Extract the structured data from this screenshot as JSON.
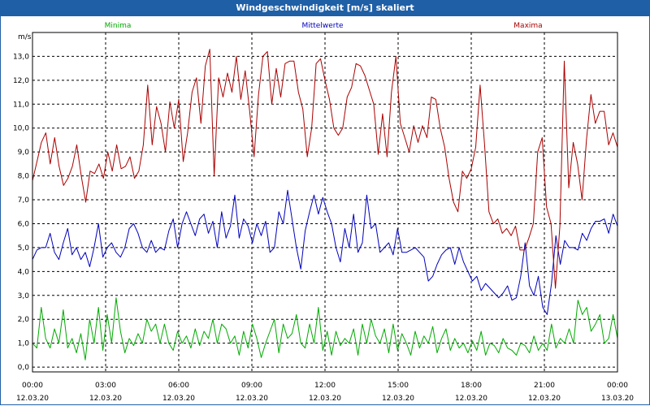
{
  "window": {
    "title": "Windgeschwindigkeit [m/s] skaliert"
  },
  "chart_data": {
    "type": "line",
    "title": "Windgeschwindigkeit [m/s] skaliert",
    "ylabel": "m/s",
    "ylim": [
      -0.2,
      14.0
    ],
    "y_ticks": [
      "0,0",
      "1,0",
      "2,0",
      "3,0",
      "4,0",
      "5,0",
      "6,0",
      "7,0",
      "8,0",
      "9,0",
      "10,0",
      "11,0",
      "12,0",
      "13,0"
    ],
    "x_ticks": [
      {
        "time": "00:00",
        "date": "12.03.20"
      },
      {
        "time": "03:00",
        "date": "12.03.20"
      },
      {
        "time": "06:00",
        "date": "12.03.20"
      },
      {
        "time": "09:00",
        "date": "12.03.20"
      },
      {
        "time": "12:00",
        "date": "12.03.20"
      },
      {
        "time": "15:00",
        "date": "12.03.20"
      },
      {
        "time": "18:00",
        "date": "12.03.20"
      },
      {
        "time": "21:00",
        "date": "12.03.20"
      },
      {
        "time": "00:00",
        "date": "13.03.20"
      }
    ],
    "grid": true,
    "legend_position": "top",
    "series": [
      {
        "name": "Minima",
        "color": "#00aa00",
        "values": [
          1.0,
          0.8,
          2.5,
          1.2,
          0.8,
          1.6,
          1.0,
          2.4,
          0.8,
          1.2,
          0.6,
          1.4,
          0.3,
          2.0,
          1.0,
          2.5,
          0.7,
          2.2,
          1.0,
          2.9,
          1.5,
          0.6,
          1.2,
          0.9,
          1.4,
          1.0,
          2.0,
          1.5,
          1.8,
          1.0,
          1.8,
          1.0,
          0.7,
          1.5,
          1.0,
          1.3,
          0.8,
          1.6,
          0.9,
          1.5,
          1.2,
          2.0,
          1.0,
          1.8,
          1.6,
          1.0,
          1.3,
          0.5,
          1.5,
          0.8,
          1.8,
          1.2,
          0.4,
          1.0,
          1.5,
          2.0,
          0.6,
          1.8,
          1.2,
          1.4,
          2.2,
          1.0,
          0.8,
          1.8,
          1.0,
          2.5,
          0.7,
          1.5,
          0.5,
          1.5,
          0.9,
          1.2,
          1.0,
          1.6,
          0.5,
          1.8,
          1.0,
          2.0,
          1.3,
          1.0,
          1.6,
          0.6,
          1.8,
          0.7,
          1.4,
          1.0,
          0.5,
          1.5,
          0.8,
          1.3,
          1.0,
          1.7,
          0.6,
          1.2,
          1.6,
          0.7,
          1.2,
          0.8,
          1.0,
          0.6,
          1.1,
          0.7,
          1.5,
          0.5,
          1.0,
          0.9,
          0.6,
          1.2,
          0.8,
          0.7,
          0.5,
          1.0,
          0.9,
          0.6,
          1.3,
          0.7,
          1.0,
          0.7,
          1.8,
          0.8,
          1.2,
          1.0,
          1.6,
          1.0,
          2.8,
          2.2,
          2.5,
          1.5,
          1.8,
          2.2,
          1.0,
          1.2,
          2.2,
          1.2
        ]
      },
      {
        "name": "Mittelwerte",
        "color": "#0000bb",
        "values": [
          4.5,
          4.9,
          5.0,
          5.0,
          5.6,
          4.8,
          4.5,
          5.2,
          5.8,
          4.7,
          5.0,
          4.5,
          4.8,
          4.2,
          5.0,
          6.0,
          4.6,
          5.0,
          5.2,
          4.8,
          4.6,
          5.0,
          5.8,
          6.0,
          5.6,
          5.0,
          4.8,
          5.3,
          4.8,
          5.0,
          4.9,
          5.7,
          6.2,
          5.0,
          6.0,
          6.5,
          6.0,
          5.5,
          6.2,
          6.4,
          5.6,
          6.1,
          5.0,
          6.5,
          5.4,
          5.9,
          7.2,
          5.4,
          6.2,
          5.9,
          5.2,
          6.0,
          5.5,
          6.1,
          4.8,
          5.0,
          6.5,
          6.0,
          7.4,
          6.2,
          5.0,
          4.1,
          5.7,
          6.5,
          7.2,
          6.4,
          7.1,
          6.5,
          6.0,
          5.0,
          4.4,
          5.8,
          5.0,
          6.4,
          4.8,
          5.2,
          7.2,
          5.8,
          6.0,
          4.8,
          5.0,
          5.2,
          4.7,
          5.8,
          4.8,
          4.8,
          4.9,
          5.0,
          4.8,
          4.6,
          3.6,
          3.8,
          4.3,
          4.7,
          4.9,
          5.0,
          4.3,
          5.0,
          4.4,
          4.0,
          3.6,
          3.8,
          3.2,
          3.5,
          3.3,
          3.1,
          2.9,
          3.1,
          3.4,
          2.8,
          2.9,
          3.8,
          5.2,
          3.4,
          3.0,
          3.8,
          2.5,
          2.2,
          3.5,
          5.5,
          4.3,
          5.3,
          5.0,
          5.0,
          4.9,
          5.6,
          5.3,
          5.8,
          6.1,
          6.1,
          6.2,
          5.6,
          6.4,
          5.9
        ]
      },
      {
        "name": "Maxima",
        "color": "#aa0000",
        "values": [
          7.8,
          8.6,
          9.4,
          9.8,
          8.5,
          9.6,
          8.4,
          7.6,
          7.9,
          8.4,
          9.3,
          8.0,
          6.9,
          8.2,
          8.1,
          8.5,
          7.9,
          9.0,
          8.2,
          9.3,
          8.3,
          8.4,
          8.8,
          7.9,
          8.2,
          9.3,
          11.8,
          9.3,
          10.9,
          10.2,
          9.0,
          11.1,
          10.0,
          11.2,
          8.6,
          9.8,
          11.5,
          12.1,
          10.2,
          12.6,
          13.3,
          8.0,
          12.1,
          11.3,
          12.3,
          11.5,
          13.0,
          11.2,
          12.4,
          10.7,
          8.8,
          11.4,
          13.0,
          13.2,
          11.0,
          12.5,
          11.3,
          12.7,
          12.8,
          12.8,
          11.5,
          10.8,
          8.8,
          10.0,
          12.7,
          12.9,
          12.0,
          11.2,
          10.0,
          9.7,
          10.0,
          11.3,
          11.7,
          12.7,
          12.6,
          12.2,
          11.6,
          11.0,
          8.9,
          10.6,
          8.8,
          11.5,
          13.0,
          10.2,
          9.6,
          9.0,
          10.1,
          9.4,
          10.1,
          9.6,
          11.3,
          11.2,
          10.0,
          9.2,
          7.9,
          6.9,
          6.5,
          8.2,
          7.9,
          8.3,
          9.2,
          11.8,
          9.3,
          6.5,
          6.0,
          6.2,
          5.6,
          5.8,
          5.5,
          5.9,
          4.9,
          4.9,
          5.4,
          6.0,
          9.0,
          9.6,
          6.7,
          6.0,
          3.3,
          5.9,
          12.8,
          7.5,
          9.4,
          8.5,
          7.0,
          9.5,
          11.4,
          10.2,
          10.7,
          10.7,
          9.3,
          9.8,
          9.2
        ]
      }
    ]
  }
}
